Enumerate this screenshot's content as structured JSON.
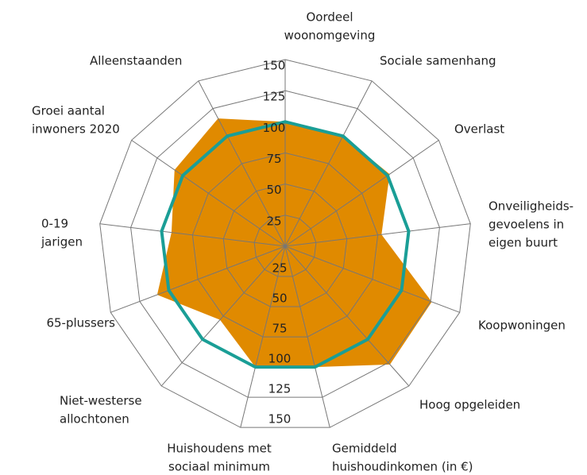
{
  "chart_data": {
    "type": "radar",
    "categories": [
      [
        "Oordeel",
        "woonomgeving"
      ],
      [
        "Sociale samenhang"
      ],
      [
        "Overlast"
      ],
      [
        "Onveiligheids-",
        "gevoelens in",
        "eigen buurt"
      ],
      [
        "Koopwoningen"
      ],
      [
        "Hoog opgeleiden"
      ],
      [
        "Gemiddeld",
        "huishoudinkomen (in €)"
      ],
      [
        "Huishoudens met",
        "sociaal minimum"
      ],
      [
        "Niet-westerse",
        "allochtonen"
      ],
      [
        "65-plussers"
      ],
      [
        "0-19",
        "jarigen"
      ],
      [
        "Groei aantal",
        "inwoners 2020"
      ],
      [
        "Alleenstaanden"
      ]
    ],
    "series": [
      {
        "color": "#e08a00",
        "fill": true,
        "values": [
          100,
          100,
          102,
          78,
          126,
          127,
          100,
          100,
          79,
          110,
          92,
          108,
          116
        ]
      },
      {
        "color": "#1a9e96",
        "fill": false,
        "values": [
          100,
          100,
          100,
          100,
          100,
          100,
          100,
          100,
          100,
          100,
          100,
          100,
          100
        ]
      }
    ],
    "rlim": [
      0,
      150
    ],
    "rticks": [
      25,
      50,
      75,
      100,
      125,
      150
    ],
    "grid": true
  }
}
